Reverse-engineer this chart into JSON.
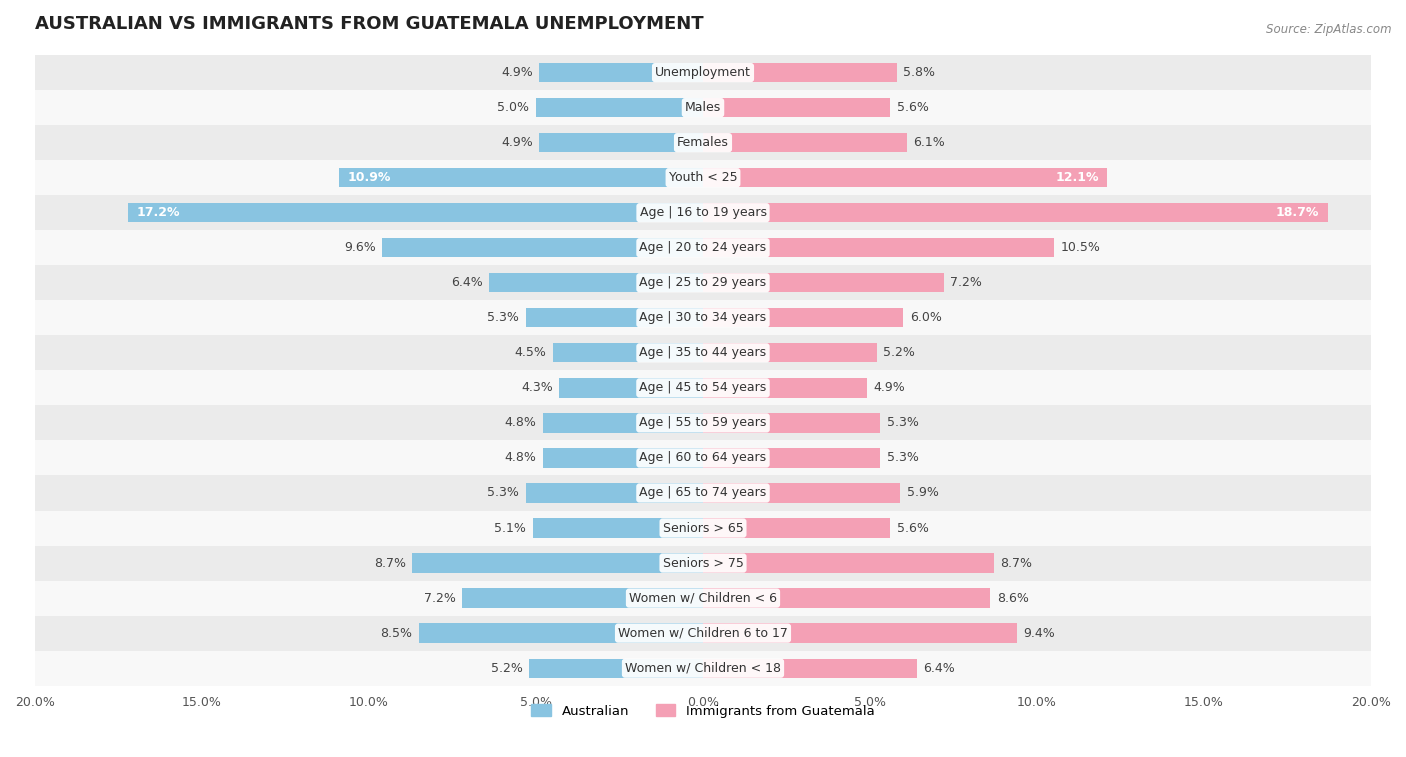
{
  "title": "AUSTRALIAN VS IMMIGRANTS FROM GUATEMALA UNEMPLOYMENT",
  "source": "Source: ZipAtlas.com",
  "categories": [
    "Unemployment",
    "Males",
    "Females",
    "Youth < 25",
    "Age | 16 to 19 years",
    "Age | 20 to 24 years",
    "Age | 25 to 29 years",
    "Age | 30 to 34 years",
    "Age | 35 to 44 years",
    "Age | 45 to 54 years",
    "Age | 55 to 59 years",
    "Age | 60 to 64 years",
    "Age | 65 to 74 years",
    "Seniors > 65",
    "Seniors > 75",
    "Women w/ Children < 6",
    "Women w/ Children 6 to 17",
    "Women w/ Children < 18"
  ],
  "australian": [
    4.9,
    5.0,
    4.9,
    10.9,
    17.2,
    9.6,
    6.4,
    5.3,
    4.5,
    4.3,
    4.8,
    4.8,
    5.3,
    5.1,
    8.7,
    7.2,
    8.5,
    5.2
  ],
  "guatemala": [
    5.8,
    5.6,
    6.1,
    12.1,
    18.7,
    10.5,
    7.2,
    6.0,
    5.2,
    4.9,
    5.3,
    5.3,
    5.9,
    5.6,
    8.7,
    8.6,
    9.4,
    6.4
  ],
  "australian_color": "#89c4e1",
  "guatemala_color": "#f4a0b5",
  "background_row_odd": "#ebebeb",
  "background_row_even": "#f8f8f8",
  "xlim": 20.0,
  "bar_height": 0.55,
  "label_fontsize": 9,
  "category_fontsize": 9,
  "title_fontsize": 13
}
